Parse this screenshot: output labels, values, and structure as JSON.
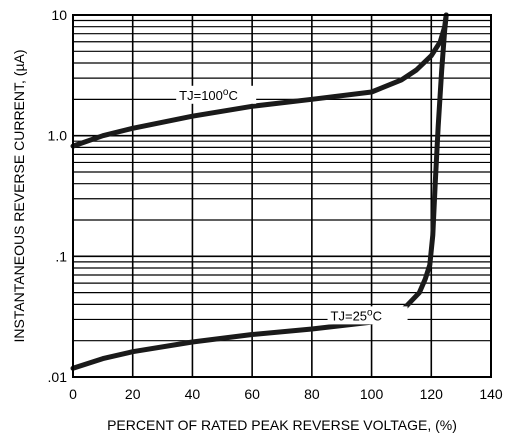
{
  "chart_data": {
    "type": "line",
    "xlabel": "PERCENT OF RATED PEAK REVERSE VOLTAGE, (%)",
    "ylabel": "INSTANTANEOUS REVERSE CURRENT, (µA)",
    "xlim": [
      0,
      140
    ],
    "ylim": [
      0.01,
      10
    ],
    "yscale": "log",
    "grid": true,
    "x_ticks": [
      0,
      20,
      40,
      60,
      80,
      100,
      120,
      140
    ],
    "x_tick_labels": [
      "0",
      "20",
      "40",
      "60",
      "80",
      "100",
      "120",
      "140"
    ],
    "y_ticks": [
      0.01,
      0.1,
      1,
      10
    ],
    "y_tick_labels": [
      ".01",
      ".1",
      "1.0",
      "10"
    ],
    "series": [
      {
        "name": "TJ=100°C",
        "label_main": "TJ=100",
        "label_sup": "o",
        "label_tail": "C",
        "x": [
          0,
          10,
          20,
          40,
          60,
          80,
          100,
          110,
          115,
          120,
          123,
          124.5,
          125
        ],
        "y": [
          0.82,
          1.0,
          1.15,
          1.45,
          1.75,
          2.0,
          2.3,
          2.9,
          3.5,
          4.6,
          6.0,
          8.0,
          10.0
        ]
      },
      {
        "name": "TJ=25°C",
        "label_main": "TJ=25",
        "label_sup": "o",
        "label_tail": "C",
        "x": [
          0,
          10,
          20,
          40,
          60,
          80,
          100,
          110,
          116,
          118,
          119.5,
          120.5,
          121.3,
          122.3,
          123.5,
          124.5,
          125
        ],
        "y": [
          0.0118,
          0.0142,
          0.0162,
          0.0195,
          0.0225,
          0.025,
          0.0285,
          0.035,
          0.05,
          0.065,
          0.085,
          0.15,
          0.4,
          1.2,
          3.5,
          7.5,
          10.0
        ]
      }
    ]
  }
}
